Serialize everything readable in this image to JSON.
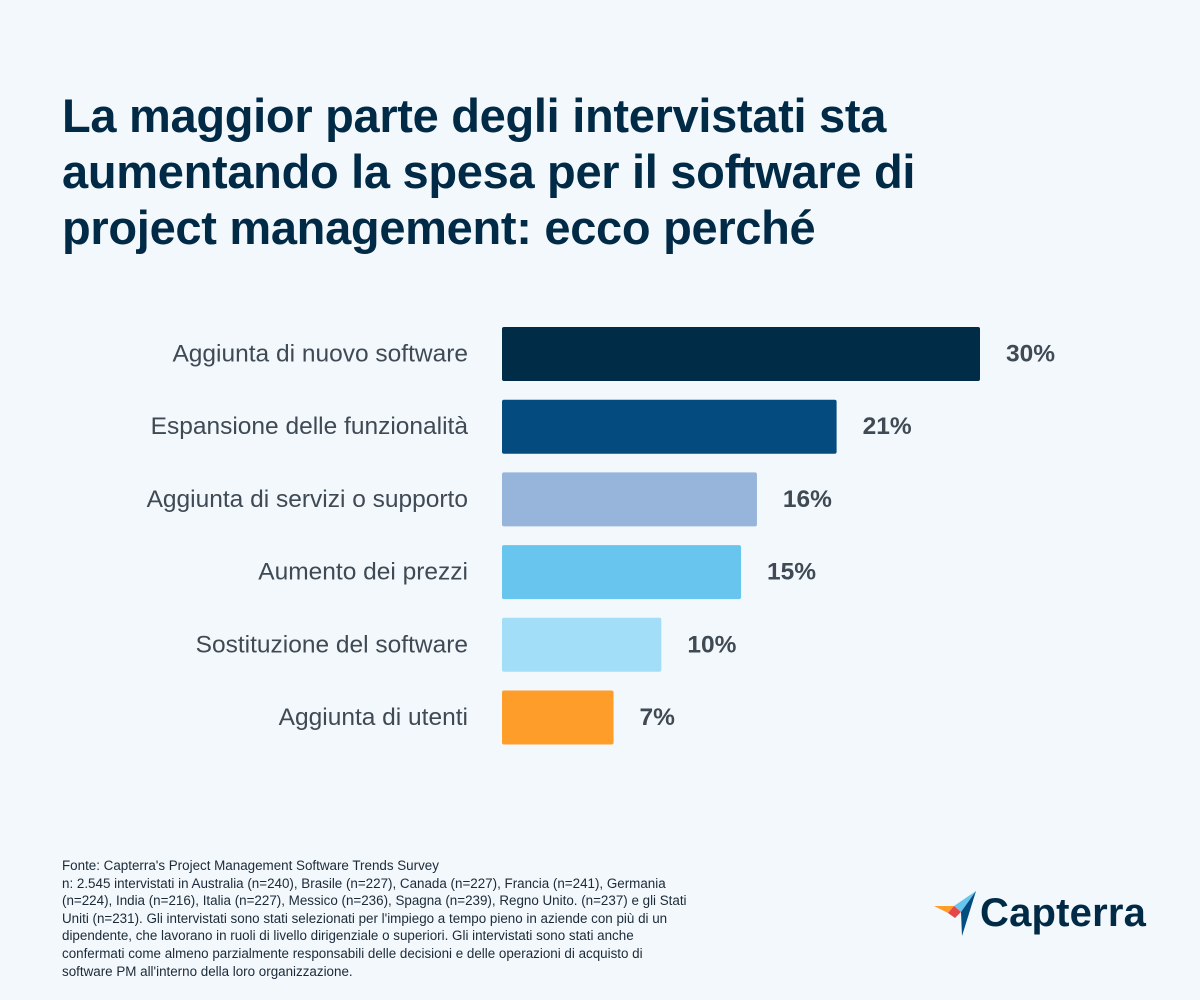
{
  "title": "La maggior parte degli intervistati sta aumentando la spesa per il software di project management: ecco perché",
  "chart_data": {
    "type": "bar",
    "orientation": "horizontal",
    "title": "",
    "xlabel": "",
    "ylabel": "",
    "categories": [
      "Aggiunta di nuovo software",
      "Espansione delle funzionalità",
      "Aggiunta di servizi o supporto",
      "Aumento dei prezzi",
      "Sostituzione del software",
      "Aggiunta di utenti"
    ],
    "values": [
      30,
      21,
      16,
      15,
      10,
      7
    ],
    "value_labels": [
      "30%",
      "21%",
      "16%",
      "15%",
      "10%",
      "7%"
    ],
    "bar_colors": [
      "#002c47",
      "#044b7f",
      "#97b4da",
      "#68c5ee",
      "#a3def8",
      "#ff9d2a"
    ],
    "xlim": [
      0,
      30
    ],
    "grid": false,
    "legend": "none"
  },
  "footnote": {
    "source": "Fonte: Capterra's Project Management Software Trends Survey",
    "lines": [
      "n: 2.545 intervistati in Australia (n=240), Brasile (n=227), Canada (n=227), Francia (n=241), Germania",
      "(n=224), India (n=216), Italia (n=227), Messico (n=236), Spagna (n=239), Regno Unito. (n=237) e gli Stati",
      "Uniti (n=231). Gli intervistati sono stati selezionati per l'impiego a tempo pieno in aziende con più di un",
      "dipendente, che lavorano in ruoli di livello dirigenziale o superiori. Gli intervistati sono stati anche",
      "confermati come almeno parzialmente responsabili delle decisioni e delle operazioni di acquisto di",
      "software PM all'interno della loro organizzazione."
    ]
  },
  "logo": {
    "text": "Capterra",
    "icon": "capterra-arrow-logo-icon",
    "colors": [
      "#ff9d28",
      "#68c5ed",
      "#044d80",
      "#e54747"
    ]
  }
}
